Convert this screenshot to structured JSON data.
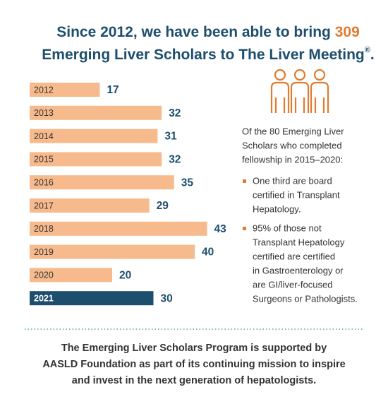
{
  "chart_data": {
    "type": "bar",
    "orientation": "horizontal",
    "title_parts": [
      "Since 2012, we have been able to bring ",
      "309",
      "Emerging Liver Scholars to The Liver Meeting",
      "®",
      "."
    ],
    "title_color": "#1d4e6e",
    "highlight_color": "#e07b2f",
    "categories": [
      "2012",
      "2013",
      "2014",
      "2015",
      "2016",
      "2017",
      "2018",
      "2019",
      "2020",
      "2021"
    ],
    "values": [
      17,
      32,
      31,
      32,
      35,
      29,
      43,
      40,
      20,
      30
    ],
    "colors": [
      "#f7ba8c",
      "#f7ba8c",
      "#f7ba8c",
      "#f7ba8c",
      "#f7ba8c",
      "#f7ba8c",
      "#f7ba8c",
      "#f7ba8c",
      "#f7ba8c",
      "#1d4e6e"
    ],
    "side_intro": [
      "Of the 80 Emerging Liver",
      "Scholars who completed",
      "fellowship in 2015–2020:"
    ],
    "bullets": [
      [
        "One third are board",
        "certified in Transplant",
        "Hepatology."
      ],
      [
        "95% of those not",
        "Transplant Hepatology",
        "certified are certified",
        "in Gastroenterology or",
        "are GI/liver-focused",
        "Surgeons or Pathologists."
      ]
    ],
    "footer": [
      "The Emerging Liver Scholars Program is supported by",
      "AASLD Foundation as part of its continuing mission to inspire",
      "and invest in the next generation of hepatologists."
    ]
  }
}
